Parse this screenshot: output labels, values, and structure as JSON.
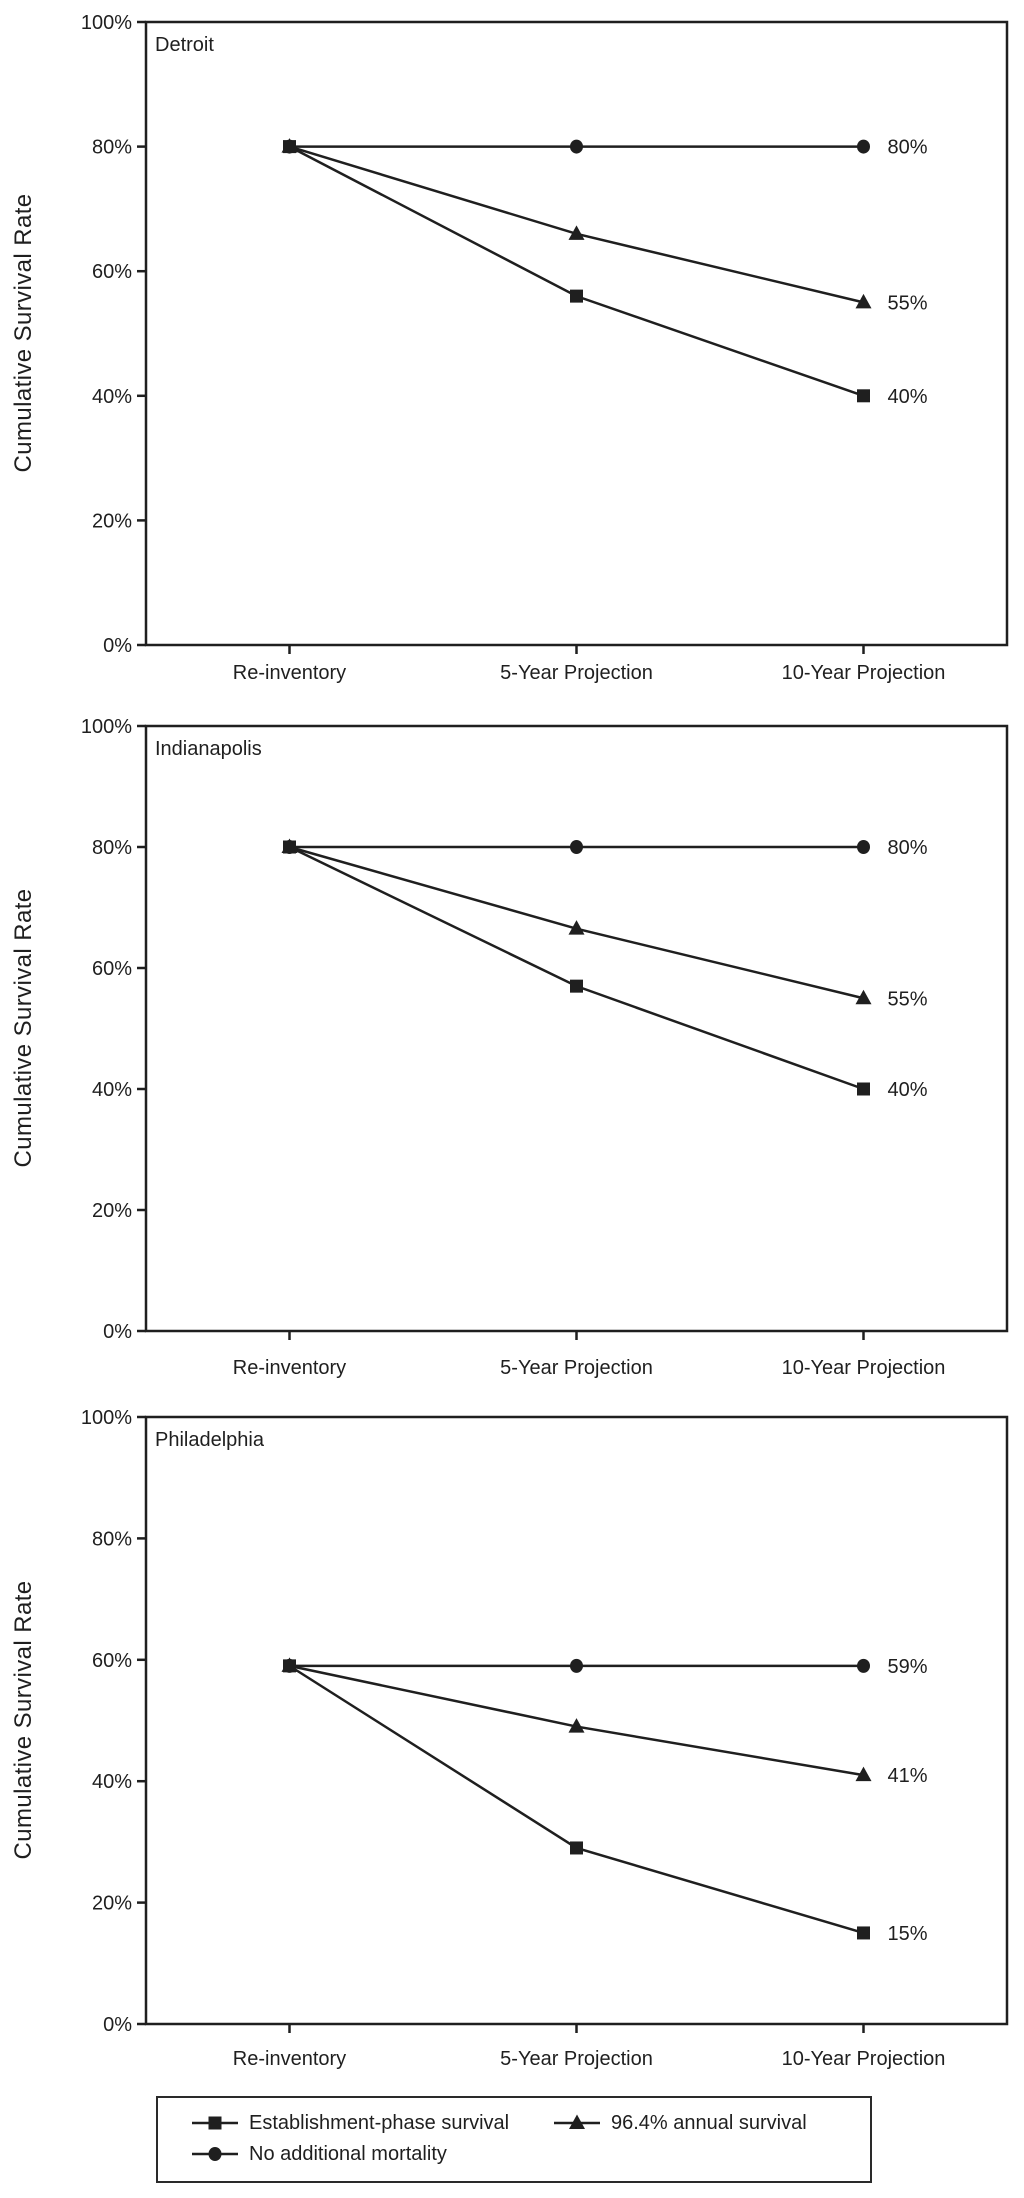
{
  "figure": {
    "background": "#ffffff",
    "ink_color": "#1f1f1f",
    "y_axis_title": "Cumulative Survival Rate",
    "y_tick_labels": [
      "0%",
      "20%",
      "40%",
      "60%",
      "80%",
      "100%"
    ],
    "x_categories": [
      "Re-inventory",
      "5-Year Projection",
      "10-Year Projection"
    ]
  },
  "chart_data": [
    {
      "type": "line",
      "title": "Detroit",
      "xlabel": "",
      "ylabel": "Cumulative Survival Rate",
      "ylim": [
        0,
        100
      ],
      "y_ticks": [
        0,
        20,
        40,
        60,
        80,
        100
      ],
      "grid": false,
      "categories": [
        "Re-inventory",
        "5-Year Projection",
        "10-Year Projection"
      ],
      "series": [
        {
          "name": "Establishment-phase survival",
          "marker": "square",
          "values": [
            80,
            56,
            40
          ],
          "end_label": "40%"
        },
        {
          "name": "96.4% annual survival",
          "marker": "triangle",
          "values": [
            80,
            66,
            55
          ],
          "end_label": "55%"
        },
        {
          "name": "No additional mortality",
          "marker": "circle",
          "values": [
            80,
            80,
            80
          ],
          "end_label": "80%"
        }
      ]
    },
    {
      "type": "line",
      "title": "Indianapolis",
      "xlabel": "",
      "ylabel": "Cumulative Survival Rate",
      "ylim": [
        0,
        100
      ],
      "y_ticks": [
        0,
        20,
        40,
        60,
        80,
        100
      ],
      "grid": false,
      "categories": [
        "Re-inventory",
        "5-Year Projection",
        "10-Year Projection"
      ],
      "series": [
        {
          "name": "Establishment-phase survival",
          "marker": "square",
          "values": [
            80,
            57,
            40
          ],
          "end_label": "40%"
        },
        {
          "name": "96.4% annual survival",
          "marker": "triangle",
          "values": [
            80,
            66.5,
            55
          ],
          "end_label": "55%"
        },
        {
          "name": "No additional mortality",
          "marker": "circle",
          "values": [
            80,
            80,
            80
          ],
          "end_label": "80%"
        }
      ]
    },
    {
      "type": "line",
      "title": "Philadelphia",
      "xlabel": "",
      "ylabel": "Cumulative Survival Rate",
      "ylim": [
        0,
        100
      ],
      "y_ticks": [
        0,
        20,
        40,
        60,
        80,
        100
      ],
      "grid": false,
      "categories": [
        "Re-inventory",
        "5-Year Projection",
        "10-Year Projection"
      ],
      "series": [
        {
          "name": "Establishment-phase survival",
          "marker": "square",
          "values": [
            59,
            29,
            15
          ],
          "end_label": "15%"
        },
        {
          "name": "96.4% annual survival",
          "marker": "triangle",
          "values": [
            59,
            49,
            41
          ],
          "end_label": "41%"
        },
        {
          "name": "No additional mortality",
          "marker": "circle",
          "values": [
            59,
            59,
            59
          ],
          "end_label": "59%"
        }
      ]
    }
  ],
  "legend": {
    "items": [
      {
        "marker": "square",
        "label": "Establishment-phase survival"
      },
      {
        "marker": "triangle",
        "label": "96.4% annual survival"
      },
      {
        "marker": "circle",
        "label": "No additional mortality"
      }
    ]
  }
}
